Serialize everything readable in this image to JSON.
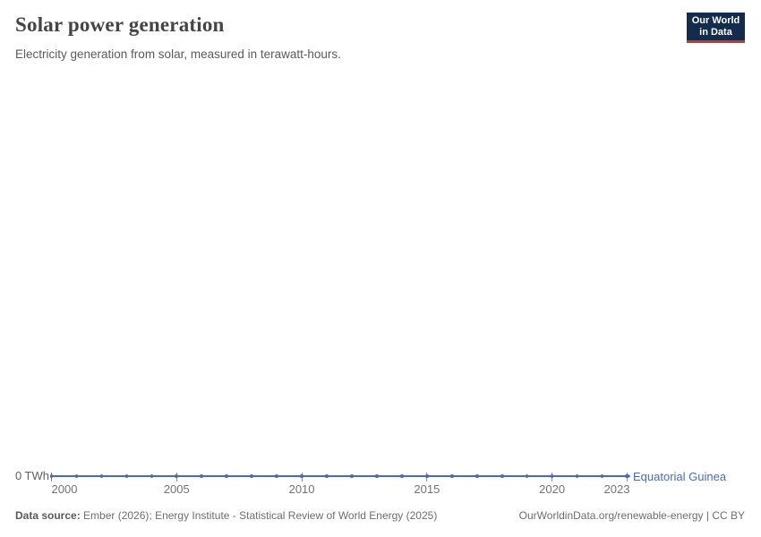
{
  "header": {
    "title": "Solar power generation",
    "subtitle": "Electricity generation from solar, measured in terawatt-hours."
  },
  "logo": {
    "line1": "Our World",
    "line2": "in Data",
    "bg_color": "#132C4B",
    "accent_color": "#CE342B"
  },
  "chart_data": {
    "type": "line",
    "x": [
      2000,
      2001,
      2002,
      2003,
      2004,
      2005,
      2006,
      2007,
      2008,
      2009,
      2010,
      2011,
      2012,
      2013,
      2014,
      2015,
      2016,
      2017,
      2018,
      2019,
      2020,
      2021,
      2022,
      2023
    ],
    "series": [
      {
        "name": "Equatorial Guinea",
        "color": "#4C6BB0",
        "values": [
          0,
          0,
          0,
          0,
          0,
          0,
          0,
          0,
          0,
          0,
          0,
          0,
          0,
          0,
          0,
          0,
          0,
          0,
          0,
          0,
          0,
          0,
          0,
          0
        ]
      }
    ],
    "x_ticks": [
      2000,
      2005,
      2010,
      2015,
      2020,
      2023
    ],
    "x_tick_labels": [
      "2000",
      "2005",
      "2010",
      "2015",
      "2020",
      "2023"
    ],
    "y_zero_label": "0 TWh",
    "ylabel": "",
    "xlabel": "",
    "ylim": [
      0,
      0
    ],
    "unit": "TWh",
    "grid": false,
    "legend_position": "end-of-line"
  },
  "footer": {
    "source_label": "Data source:",
    "source_text": " Ember (2026); Energy Institute - Statistical Review of World Energy (2025)",
    "link_text": "OurWorldinData.org/renewable-energy | CC BY"
  }
}
